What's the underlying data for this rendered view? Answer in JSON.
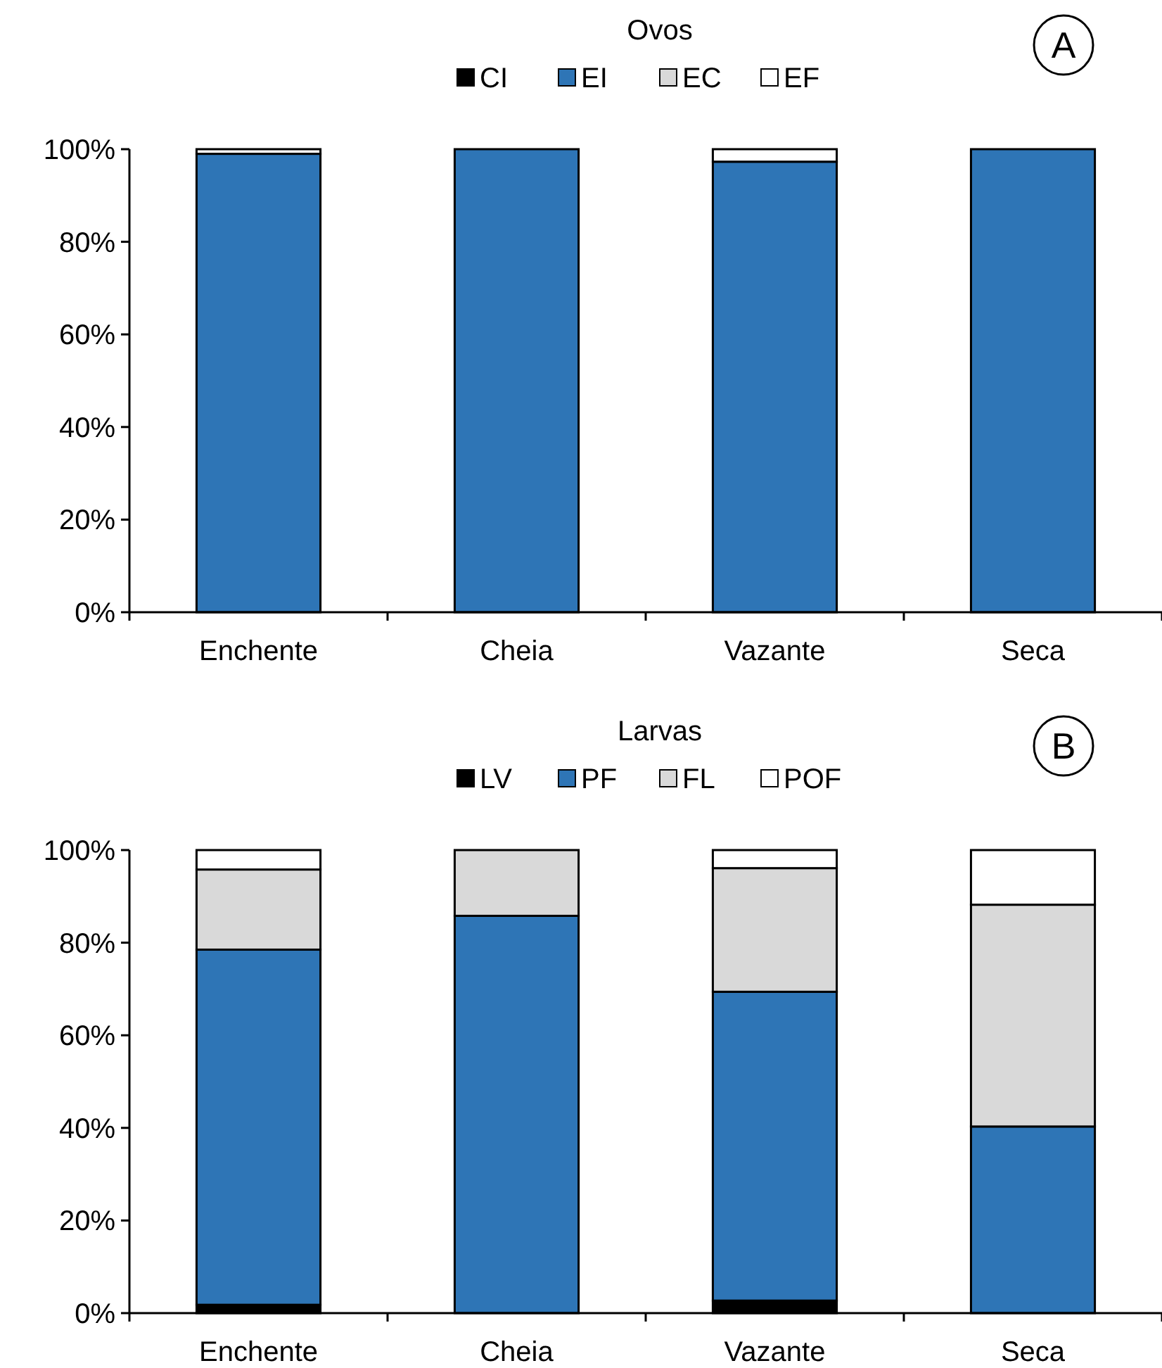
{
  "chart_data": [
    {
      "type": "bar",
      "title": "Ovos",
      "annotations": [
        "A"
      ],
      "stacked": true,
      "legend": "top",
      "grid": false,
      "categories": [
        "Enchente",
        "Cheia",
        "Vazante",
        "Seca"
      ],
      "ylim": [
        0,
        100
      ],
      "yticks": [
        {
          "value": 0,
          "label": "0%"
        },
        {
          "value": 20,
          "label": "20%"
        },
        {
          "value": 40,
          "label": "40%"
        },
        {
          "value": 60,
          "label": "60%"
        },
        {
          "value": 80,
          "label": "80%"
        },
        {
          "value": 100,
          "label": "100%"
        }
      ],
      "series": [
        {
          "name": "CI",
          "color": "#000000",
          "values": [
            0,
            0,
            0,
            0
          ]
        },
        {
          "name": "EI",
          "color": "#2e75b6",
          "values": [
            99,
            100,
            97.3,
            100
          ]
        },
        {
          "name": "EC",
          "color": "#d9d9d9",
          "values": [
            0,
            0,
            0,
            0
          ]
        },
        {
          "name": "EF",
          "color": "#ffffff",
          "values": [
            1,
            0,
            2.7,
            0
          ]
        }
      ]
    },
    {
      "type": "bar",
      "title": "Larvas",
      "annotations": [
        "B"
      ],
      "stacked": true,
      "legend": "top",
      "grid": false,
      "categories": [
        "Enchente",
        "Cheia",
        "Vazante",
        "Seca"
      ],
      "ylim": [
        0,
        100
      ],
      "yticks": [
        {
          "value": 0,
          "label": "0%"
        },
        {
          "value": 20,
          "label": "20%"
        },
        {
          "value": 40,
          "label": "40%"
        },
        {
          "value": 60,
          "label": "60%"
        },
        {
          "value": 80,
          "label": "80%"
        },
        {
          "value": 100,
          "label": "100%"
        }
      ],
      "series": [
        {
          "name": "LV",
          "color": "#000000",
          "values": [
            1.8,
            0,
            2.7,
            0
          ]
        },
        {
          "name": "PF",
          "color": "#2e75b6",
          "values": [
            76.7,
            85.8,
            66.7,
            40.3
          ]
        },
        {
          "name": "FL",
          "color": "#d9d9d9",
          "values": [
            17.3,
            14.2,
            26.7,
            47.9
          ]
        },
        {
          "name": "POF",
          "color": "#ffffff",
          "values": [
            4.2,
            0,
            3.9,
            11.8
          ]
        }
      ]
    }
  ]
}
